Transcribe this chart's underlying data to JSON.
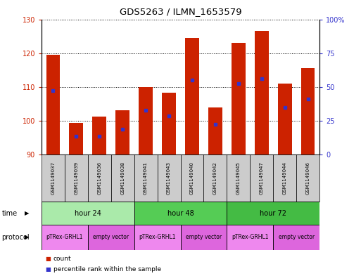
{
  "title": "GDS5263 / ILMN_1653579",
  "samples": [
    "GSM1149037",
    "GSM1149039",
    "GSM1149036",
    "GSM1149038",
    "GSM1149041",
    "GSM1149043",
    "GSM1149040",
    "GSM1149042",
    "GSM1149045",
    "GSM1149047",
    "GSM1149044",
    "GSM1149046"
  ],
  "bar_tops": [
    119.5,
    99.3,
    101.2,
    103.2,
    110.0,
    108.2,
    124.5,
    104.0,
    123.0,
    126.5,
    111.0,
    115.5
  ],
  "bar_bottoms": [
    90,
    90,
    90,
    90,
    90,
    90,
    90,
    90,
    90,
    90,
    90,
    90
  ],
  "blue_y_left": [
    109.0,
    95.5,
    95.5,
    97.5,
    103.0,
    101.5,
    112.0,
    99.0,
    111.0,
    112.5,
    104.0,
    106.5
  ],
  "ylim_left": [
    90,
    130
  ],
  "ylim_right": [
    0,
    100
  ],
  "yticks_left": [
    90,
    100,
    110,
    120,
    130
  ],
  "yticks_right": [
    0,
    25,
    50,
    75,
    100
  ],
  "yticklabels_right": [
    "0",
    "25",
    "50",
    "75",
    "100%"
  ],
  "bar_color": "#cc2200",
  "blue_color": "#3333cc",
  "time_groups": [
    {
      "label": "hour 24",
      "start": 0,
      "end": 4,
      "color": "#aaeaaa"
    },
    {
      "label": "hour 48",
      "start": 4,
      "end": 8,
      "color": "#55cc55"
    },
    {
      "label": "hour 72",
      "start": 8,
      "end": 12,
      "color": "#44bb44"
    }
  ],
  "protocol_groups": [
    {
      "label": "pTRex-GRHL1",
      "start": 0,
      "end": 2,
      "color": "#ee88ee"
    },
    {
      "label": "empty vector",
      "start": 2,
      "end": 4,
      "color": "#dd66dd"
    },
    {
      "label": "pTRex-GRHL1",
      "start": 4,
      "end": 6,
      "color": "#ee88ee"
    },
    {
      "label": "empty vector",
      "start": 6,
      "end": 8,
      "color": "#dd66dd"
    },
    {
      "label": "pTRex-GRHL1",
      "start": 8,
      "end": 10,
      "color": "#ee88ee"
    },
    {
      "label": "empty vector",
      "start": 10,
      "end": 12,
      "color": "#dd66dd"
    }
  ],
  "left_label_color": "#cc2200",
  "right_label_color": "#3333cc",
  "legend_items": [
    {
      "label": "count",
      "color": "#cc2200"
    },
    {
      "label": "percentile rank within the sample",
      "color": "#3333cc"
    }
  ],
  "sample_bg_color": "#cccccc",
  "fig_width": 5.13,
  "fig_height": 3.93,
  "dpi": 100
}
